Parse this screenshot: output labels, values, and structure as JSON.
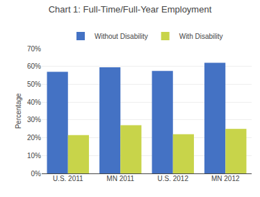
{
  "chart_data": {
    "type": "bar",
    "title": "Chart 1: Full-Time/Full-Year Employment",
    "categories": [
      "U.S. 2011",
      "MN 2011",
      "U.S. 2012",
      "MN 2012"
    ],
    "series": [
      {
        "name": "Without Disability",
        "color": "#4472C4",
        "values": [
          57,
          59.5,
          57.5,
          62
        ]
      },
      {
        "name": "With Disability",
        "color": "#C8D44A",
        "values": [
          21.5,
          27,
          22,
          25
        ]
      }
    ],
    "ylabel": "Percentage",
    "ylim": [
      0,
      70
    ],
    "yticks": [
      {
        "value": 0,
        "label": "0%"
      },
      {
        "value": 10,
        "label": "10%"
      },
      {
        "value": 20,
        "label": "20%"
      },
      {
        "value": 30,
        "label": "30%"
      },
      {
        "value": 40,
        "label": "40%"
      },
      {
        "value": 50,
        "label": "50%"
      },
      {
        "value": 60,
        "label": "60%"
      },
      {
        "value": 70,
        "label": "70%"
      }
    ],
    "grid": true,
    "legend": "top"
  }
}
